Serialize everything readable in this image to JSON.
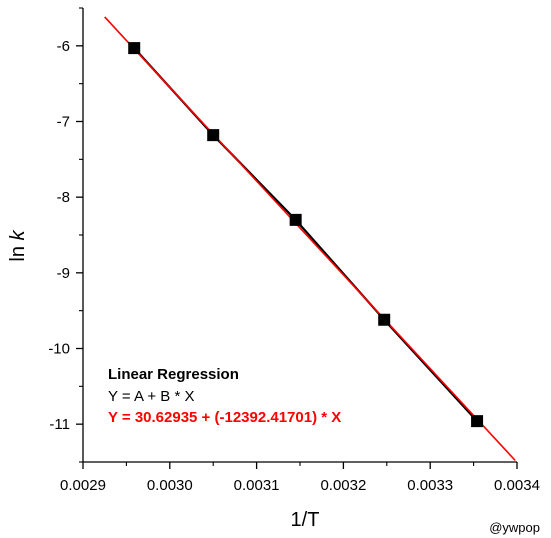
{
  "chart_data": {
    "type": "scatter",
    "title": "",
    "xlabel": "1/T",
    "ylabel_prefix": "ln ",
    "ylabel_italic": "k",
    "xlim": [
      0.0029,
      0.0034
    ],
    "ylim": [
      -11.5,
      -5.5
    ],
    "xticks": [
      0.0029,
      0.003,
      0.0031,
      0.0032,
      0.0033,
      0.0034
    ],
    "xtick_labels": [
      "0.0029",
      "0.0030",
      "0.0031",
      "0.0032",
      "0.0033",
      "0.0034"
    ],
    "yticks": [
      -11,
      -10,
      -9,
      -8,
      -7,
      -6
    ],
    "ytick_labels": [
      "-11",
      "-10",
      "-9",
      "-8",
      "-7",
      "-6"
    ],
    "grid": false,
    "series": [
      {
        "marker": "square",
        "color": "#000000",
        "x": [
          0.002959,
          0.00305,
          0.003145,
          0.003247,
          0.003354
        ],
        "y": [
          -6.03,
          -7.18,
          -8.3,
          -9.62,
          -10.96
        ]
      }
    ],
    "fit": {
      "intercept": 30.62935,
      "slope": -12392.41701,
      "x_range": [
        0.002925,
        0.003398
      ],
      "color": "#ff0000"
    },
    "annotation": {
      "title": "Linear Regression",
      "formula": "Y = A + B * X",
      "equation": "Y = 30.62935 + (-12392.41701) * X"
    },
    "credit": "@ywpop"
  }
}
